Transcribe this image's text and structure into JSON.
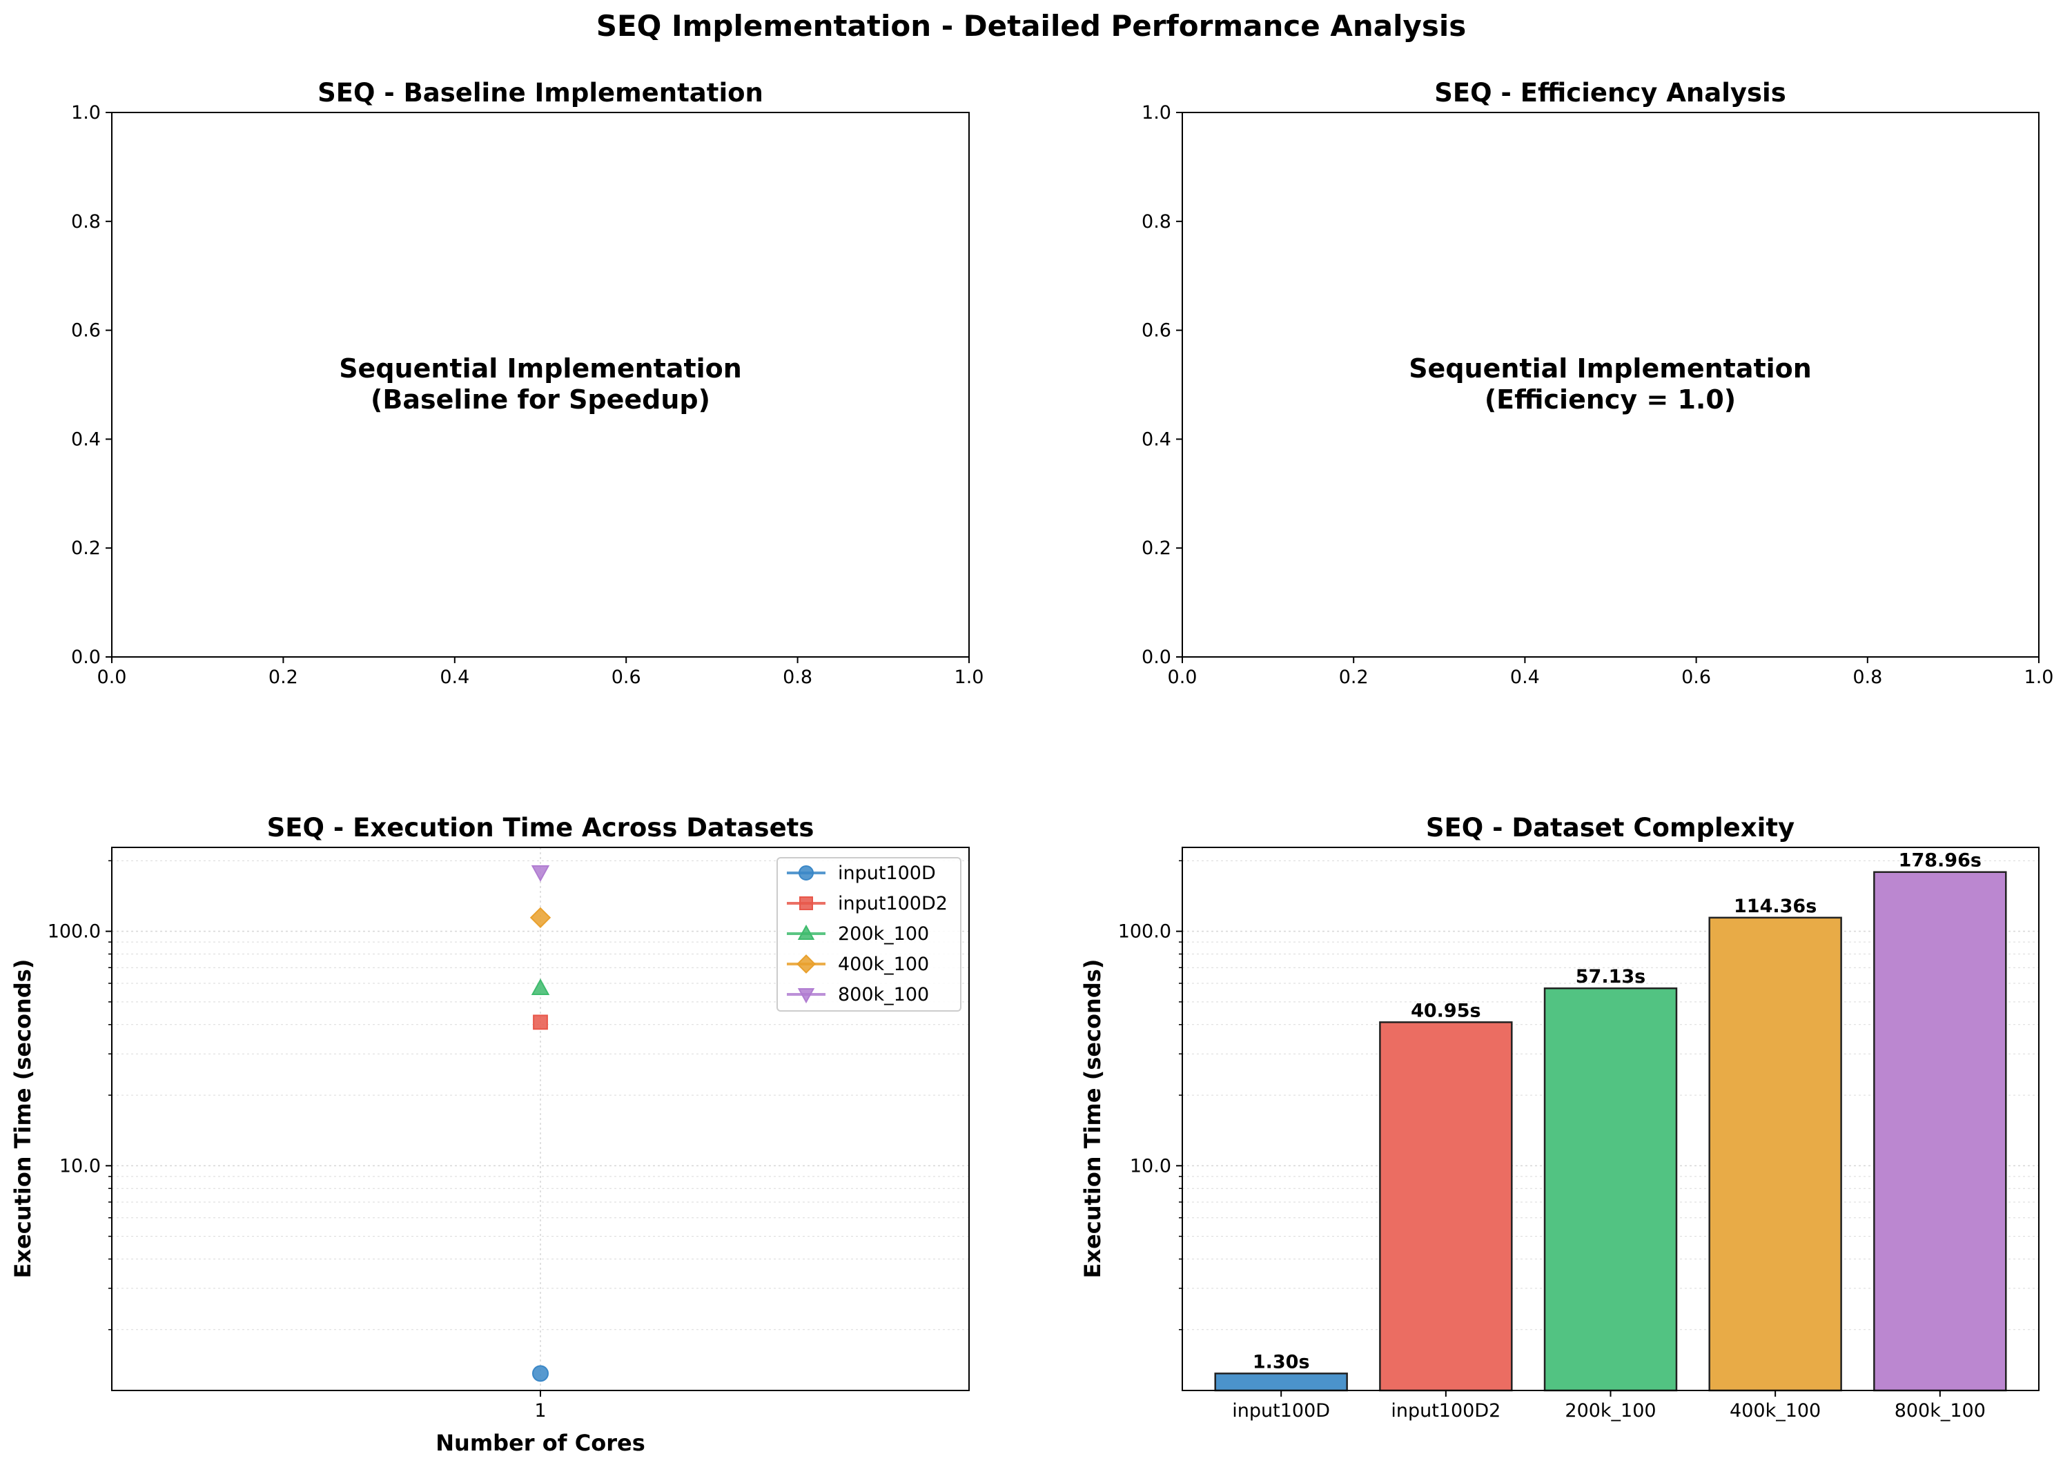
{
  "figure": {
    "title": "SEQ Implementation - Detailed Performance Analysis"
  },
  "chart_data": [
    {
      "type": "line",
      "title": "SEQ - Baseline Implementation",
      "xlabel": "",
      "ylabel": "",
      "xlim": [
        0,
        1
      ],
      "ylim": [
        0,
        1
      ],
      "xticks": [
        "0.0",
        "0.2",
        "0.4",
        "0.6",
        "0.8",
        "1.0"
      ],
      "yticks": [
        "0.0",
        "0.2",
        "0.4",
        "0.6",
        "0.8",
        "1.0"
      ],
      "annotation": {
        "line1": "Sequential Implementation",
        "line2": "(Baseline for Speedup)"
      },
      "grid": false
    },
    {
      "type": "line",
      "title": "SEQ - Efficiency Analysis",
      "xlabel": "",
      "ylabel": "",
      "xlim": [
        0,
        1
      ],
      "ylim": [
        0,
        1
      ],
      "xticks": [
        "0.0",
        "0.2",
        "0.4",
        "0.6",
        "0.8",
        "1.0"
      ],
      "yticks": [
        "0.0",
        "0.2",
        "0.4",
        "0.6",
        "0.8",
        "1.0"
      ],
      "annotation": {
        "line1": "Sequential Implementation",
        "line2": "(Efficiency = 1.0)"
      },
      "grid": false
    },
    {
      "type": "scatter",
      "title": "SEQ - Execution Time Across Datasets",
      "xlabel": "Number of Cores",
      "ylabel": "Execution Time (seconds)",
      "yscale": "log",
      "xticks": [
        "1"
      ],
      "yticks": [
        "10.0",
        "100.0"
      ],
      "grid": true,
      "legend": "top-right",
      "series": [
        {
          "name": "input100D",
          "x": 1,
          "y": 1.3,
          "marker": "circle",
          "color": "#3a87c7"
        },
        {
          "name": "input100D2",
          "x": 1,
          "y": 40.95,
          "marker": "square",
          "color": "#e8574a"
        },
        {
          "name": "200k_100",
          "x": 1,
          "y": 57.13,
          "marker": "triangle-up",
          "color": "#3ebb6d"
        },
        {
          "name": "400k_100",
          "x": 1,
          "y": 114.36,
          "marker": "diamond",
          "color": "#e9a02c"
        },
        {
          "name": "800k_100",
          "x": 1,
          "y": 178.96,
          "marker": "triangle-down",
          "color": "#b07cd1"
        }
      ]
    },
    {
      "type": "bar",
      "title": "SEQ - Dataset Complexity",
      "xlabel": "",
      "ylabel": "Execution Time (seconds)",
      "yscale": "log",
      "yticks": [
        "10.0",
        "100.0"
      ],
      "grid": true,
      "categories": [
        "input100D",
        "input100D2",
        "200k_100",
        "400k_100",
        "800k_100"
      ],
      "values": [
        1.3,
        40.95,
        57.13,
        114.36,
        178.96
      ],
      "labels": [
        "1.30s",
        "40.95s",
        "57.13s",
        "114.36s",
        "178.96s"
      ],
      "colors": [
        "#4b93cb",
        "#eb6d62",
        "#52c382",
        "#e8ab47",
        "#bb87d0"
      ]
    }
  ]
}
